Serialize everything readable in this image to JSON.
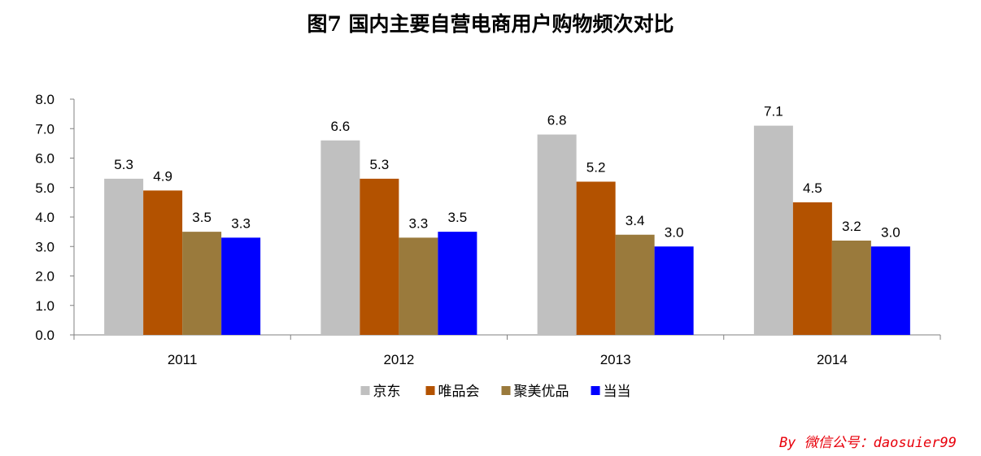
{
  "chart_data": {
    "type": "bar",
    "title": "图7 国内主要自营电商用户购物频次对比",
    "categories": [
      "2011",
      "2012",
      "2013",
      "2014"
    ],
    "series": [
      {
        "name": "京东",
        "color": "#c0c0c0",
        "values": [
          5.3,
          6.6,
          6.8,
          7.1
        ]
      },
      {
        "name": "唯品会",
        "color": "#b35200",
        "values": [
          4.9,
          5.3,
          5.2,
          4.5
        ]
      },
      {
        "name": "聚美优品",
        "color": "#9a7a3c",
        "values": [
          3.5,
          3.3,
          3.4,
          3.2
        ]
      },
      {
        "name": "当当",
        "color": "#0000ff",
        "values": [
          3.3,
          3.5,
          3.0,
          3.0
        ]
      }
    ],
    "y_ticks": [
      "0.0",
      "1.0",
      "2.0",
      "3.0",
      "4.0",
      "5.0",
      "6.0",
      "7.0",
      "8.0"
    ],
    "ylim": [
      0,
      8
    ],
    "legend_position": "bottom",
    "grid": false
  },
  "watermark": "By 微信公号：daosuier99"
}
